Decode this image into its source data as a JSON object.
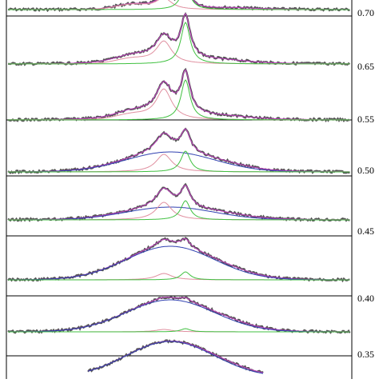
{
  "panels": [
    {
      "label": "0.70"
    },
    {
      "label": "0.65"
    },
    {
      "label": "0.55"
    },
    {
      "label": "0.50"
    },
    {
      "label": "0.45"
    },
    {
      "label": "0.40"
    },
    {
      "label": "0.35"
    }
  ]
}
